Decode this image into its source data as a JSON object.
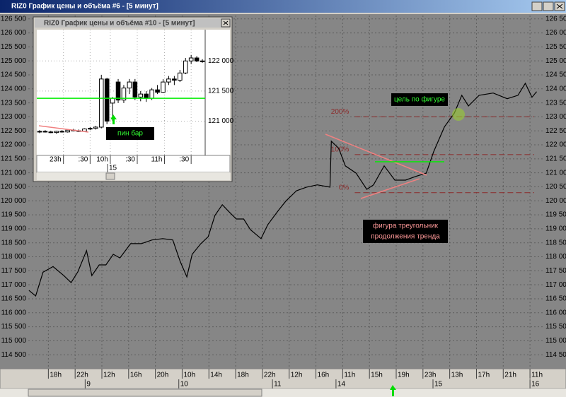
{
  "window": {
    "title": "RIZ0 График цены и объёма #6 - [5 минут]"
  },
  "chart_data": [
    {
      "type": "line",
      "x": [
        -2.9,
        -1.9,
        -0.8,
        0.7,
        2.3,
        3.4,
        4.4,
        5.7,
        6.5,
        7.6,
        8.6,
        9.7,
        10.7,
        12.3,
        13.9,
        15.5,
        17.1,
        18.6,
        19.7,
        20.7,
        21.5,
        22.8,
        23.9,
        24.9,
        26,
        27,
        28.1,
        29.2,
        30.2,
        31.8,
        32.8,
        34.4,
        35.5,
        37.1,
        38.6,
        40.2,
        42.1,
        42.3,
        43.4,
        44.4,
        46,
        47.6,
        48.6,
        50.2,
        51.8,
        53.4,
        54.9,
        56.5,
        57.6,
        59.2,
        60.7,
        61.8,
        62.8,
        64.4,
        66.5,
        68.6,
        70.2,
        71.3,
        72.3,
        73
      ],
      "series": [
        {
          "color": "#000000",
          "values": [
            116800,
            116600,
            117450,
            117650,
            117330,
            117080,
            117460,
            118220,
            117330,
            117710,
            117710,
            118090,
            117960,
            118470,
            118470,
            118600,
            118650,
            118600,
            117840,
            117280,
            118090,
            118470,
            118720,
            119480,
            119860,
            119610,
            119350,
            119350,
            118970,
            118650,
            119150,
            119660,
            119990,
            120360,
            120490,
            120570,
            120490,
            122130,
            121880,
            121250,
            120990,
            120410,
            120570,
            121250,
            120740,
            120740,
            120870,
            120990,
            121750,
            122640,
            123140,
            123770,
            123390,
            123770,
            123850,
            123650,
            123770,
            124200,
            123700,
            123900
          ]
        }
      ],
      "xlim": [
        -3,
        74
      ],
      "ylim": [
        114000,
        126620
      ],
      "xticks": [
        {
          "value": 0,
          "label": "18h"
        },
        {
          "value": 4,
          "label": "22h"
        },
        {
          "value": 8,
          "label": "12h"
        },
        {
          "value": 12,
          "label": "16h"
        },
        {
          "value": 16,
          "label": "20h"
        },
        {
          "value": 20,
          "label": "10h"
        },
        {
          "value": 24,
          "label": "14h"
        },
        {
          "value": 28,
          "label": "18h"
        },
        {
          "value": 32,
          "label": "22h"
        },
        {
          "value": 36,
          "label": "12h"
        },
        {
          "value": 40,
          "label": "16h"
        },
        {
          "value": 44,
          "label": "11h"
        },
        {
          "value": 48,
          "label": "15h"
        },
        {
          "value": 52,
          "label": "19h"
        },
        {
          "value": 56,
          "label": "23h"
        },
        {
          "value": 60,
          "label": "13h"
        },
        {
          "value": 64,
          "label": "17h"
        },
        {
          "value": 68,
          "label": "21h"
        },
        {
          "value": 72,
          "label": "11h"
        }
      ],
      "x2ticks": [
        {
          "value": 5.5,
          "label": "9"
        },
        {
          "value": 19.5,
          "label": "10"
        },
        {
          "value": 33.5,
          "label": "11"
        },
        {
          "value": 43,
          "label": "14"
        },
        {
          "value": 57.5,
          "label": "15"
        },
        {
          "value": 72,
          "label": "16"
        }
      ],
      "yticks": [
        {
          "value": 126500,
          "label": "126 500"
        },
        {
          "value": 126000,
          "label": "126 000"
        },
        {
          "value": 125500,
          "label": "125 500"
        },
        {
          "value": 125000,
          "label": "125 000"
        },
        {
          "value": 124500,
          "label": "124 500"
        },
        {
          "value": 124000,
          "label": "124 000"
        },
        {
          "value": 123500,
          "label": "123 500"
        },
        {
          "value": 123000,
          "label": "123 000"
        },
        {
          "value": 122500,
          "label": "122 500"
        },
        {
          "value": 122000,
          "label": "122 000"
        },
        {
          "value": 121500,
          "label": "121 500"
        },
        {
          "value": 121000,
          "label": "121 000"
        },
        {
          "value": 120500,
          "label": "120 500"
        },
        {
          "value": 120000,
          "label": "120 000"
        },
        {
          "value": 119500,
          "label": "119 500"
        },
        {
          "value": 119000,
          "label": "119 000"
        },
        {
          "value": 118500,
          "label": "118 500"
        },
        {
          "value": 118000,
          "label": "118 000"
        },
        {
          "value": 117500,
          "label": "117 500"
        },
        {
          "value": 117000,
          "label": "117 000"
        },
        {
          "value": 116500,
          "label": "116 500"
        },
        {
          "value": 116000,
          "label": "116 000"
        },
        {
          "value": 115500,
          "label": "115 500"
        },
        {
          "value": 115000,
          "label": "115 000"
        },
        {
          "value": 114500,
          "label": "114 500"
        }
      ],
      "grid": true,
      "levels": {
        "start": 45.8,
        "color": "#8b2a2a",
        "items": [
          {
            "label": "200%",
            "value": 123000
          },
          {
            "label": "100%",
            "value": 121650
          },
          {
            "label": "0%",
            "value": 120290
          }
        ]
      },
      "annotations": {
        "target": "цель по фигуре",
        "pattern": [
          "фигура треугольник",
          "продолжения тренда"
        ]
      }
    },
    {
      "type": "candlestick",
      "title": "RIZ0 График цены и объёма #10 - [5 минут]",
      "open": [
        120820,
        120830,
        120820,
        120810,
        120830,
        120820,
        120850,
        120840,
        120830,
        120870,
        120880,
        120900,
        121700,
        121300,
        121650,
        121350,
        121550,
        121650,
        121400,
        121450,
        121380,
        121520,
        121480,
        121650,
        121700,
        121680,
        121800,
        122000,
        122050,
        122000
      ],
      "high": [
        120850,
        120850,
        120840,
        120840,
        120850,
        120860,
        120870,
        120860,
        120880,
        120900,
        120920,
        121770,
        121720,
        121400,
        121700,
        121600,
        121700,
        121700,
        121500,
        121500,
        121550,
        121600,
        121700,
        121750,
        121750,
        121850,
        122050,
        122100,
        122080,
        122030
      ],
      "low": [
        120800,
        120810,
        120800,
        120790,
        120810,
        120810,
        120830,
        120820,
        120820,
        120850,
        120860,
        120880,
        120950,
        121000,
        121300,
        121300,
        121450,
        121350,
        121330,
        121320,
        121350,
        121450,
        121470,
        121600,
        121600,
        121650,
        121780,
        121950,
        121980,
        121970
      ],
      "close": [
        120830,
        120820,
        120810,
        120830,
        120820,
        120850,
        120840,
        120830,
        120870,
        120880,
        120900,
        121700,
        121000,
        121380,
        121350,
        121550,
        121650,
        121400,
        121450,
        121380,
        121520,
        121480,
        121650,
        121700,
        121680,
        121800,
        122000,
        122050,
        122000,
        121990
      ],
      "xlim": [
        -0.5,
        29.5
      ],
      "ylim": [
        120430,
        122520
      ],
      "xticks": [
        {
          "value": 4.25,
          "label": "23h"
        },
        {
          "value": 9,
          "label": ":30"
        },
        {
          "value": 12.6,
          "label": "10h"
        },
        {
          "value": 17.4,
          "label": ":30"
        },
        {
          "value": 22.25,
          "label": "11h"
        },
        {
          "value": 27,
          "label": ":30"
        }
      ],
      "x2ticks": [
        {
          "value": 12.1,
          "label": "15"
        }
      ],
      "yticks": [
        {
          "value": 122000,
          "label": "122 000"
        },
        {
          "value": 121500,
          "label": "121 500"
        },
        {
          "value": 121000,
          "label": "121 000"
        }
      ],
      "grid": true,
      "annotation": "пин бар"
    }
  ]
}
